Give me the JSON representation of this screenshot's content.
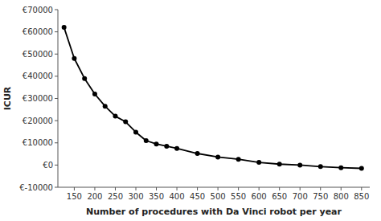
{
  "chart_data": {
    "type": "line",
    "xlabel": "Number of procedures with Da Vinci robot per year",
    "ylabel": "ICUR",
    "x": [
      125,
      150,
      175,
      200,
      225,
      250,
      275,
      300,
      325,
      350,
      375,
      400,
      450,
      500,
      550,
      600,
      650,
      700,
      750,
      800,
      850
    ],
    "values": [
      62000,
      48000,
      39000,
      32000,
      26500,
      22000,
      19500,
      14800,
      11000,
      9500,
      8500,
      7500,
      5200,
      3600,
      2600,
      1200,
      400,
      0,
      -700,
      -1200,
      -1500
    ],
    "color": "#000000",
    "marker": "circle",
    "xlim": [
      110,
      870
    ],
    "ylim": [
      -10000,
      70000
    ],
    "xticks": [
      150,
      200,
      250,
      300,
      350,
      400,
      450,
      500,
      550,
      600,
      650,
      700,
      750,
      800,
      850
    ],
    "yticks": [
      {
        "value": -10000,
        "label": "€-10000"
      },
      {
        "value": 0,
        "label": "€0"
      },
      {
        "value": 10000,
        "label": "€10000"
      },
      {
        "value": 20000,
        "label": "€20000"
      },
      {
        "value": 30000,
        "label": "€30000"
      },
      {
        "value": 40000,
        "label": "€40000"
      },
      {
        "value": 50000,
        "label": "€50000"
      },
      {
        "value": 60000,
        "label": "€60000"
      },
      {
        "value": 70000,
        "label": "€70000"
      }
    ],
    "grid": false
  }
}
